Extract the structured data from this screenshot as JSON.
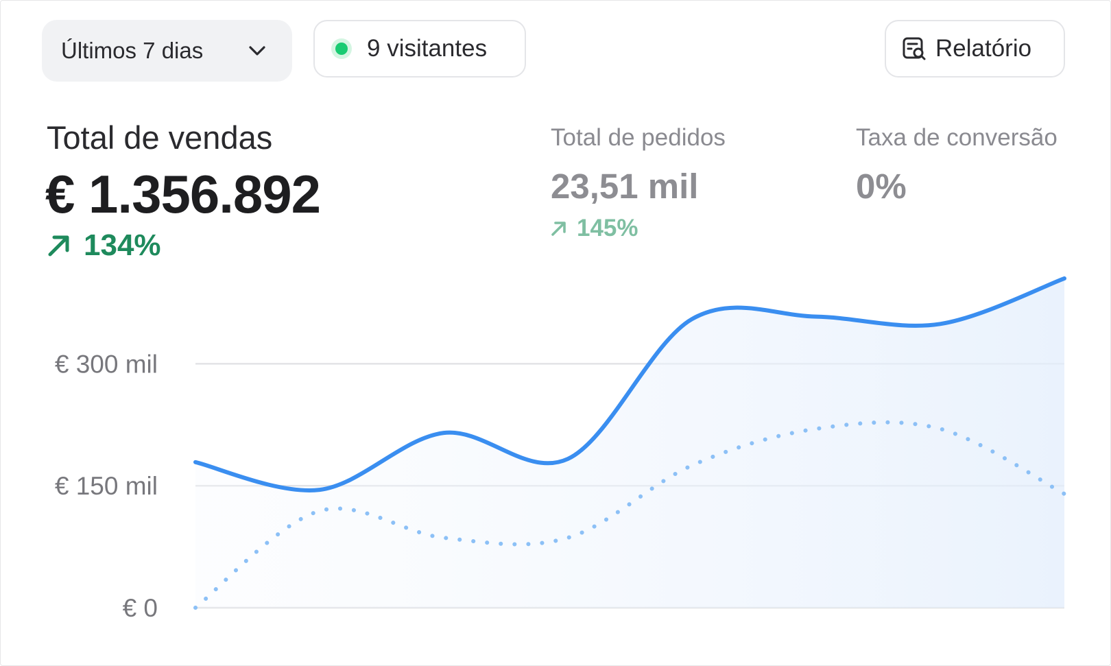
{
  "controls": {
    "period_label": "Últimos 7 dias",
    "visitors_label": "9 visitantes",
    "report_label": "Relatório"
  },
  "metrics": {
    "sales": {
      "label": "Total de vendas",
      "value": "€ 1.356.892",
      "change": "134%"
    },
    "orders": {
      "label": "Total de pedidos",
      "value": "23,51 mil",
      "change": "145%"
    },
    "conversion": {
      "label": "Taxa de conversão",
      "value": "0%"
    }
  },
  "colors": {
    "primary_line": "#3a8ef0",
    "comparison_line": "#8cc0f6",
    "positive": "#1e8a5c",
    "positive_muted": "#7fbfa2",
    "live_dot": "#19cb72"
  },
  "icons": {
    "period": "chevron-down-icon",
    "visitors": "live-dot-icon",
    "report": "report-search-icon",
    "change": "arrow-up-right-icon"
  },
  "chart_data": {
    "type": "area",
    "ytick_labels": [
      "€ 0",
      "€ 150 mil",
      "€ 300 mil"
    ],
    "ytick_values": [
      0,
      150000,
      300000
    ],
    "ylim": [
      0,
      410000
    ],
    "x": [
      0,
      1,
      2,
      3,
      4,
      5,
      6,
      7
    ],
    "grid": true,
    "series": [
      {
        "style": "solid",
        "fill": true,
        "values": [
          179000,
          145000,
          215000,
          183000,
          355000,
          358000,
          349000,
          405000
        ]
      },
      {
        "style": "dotted",
        "fill": false,
        "values": [
          0,
          119000,
          86000,
          86000,
          175000,
          220000,
          220000,
          140000
        ]
      }
    ]
  }
}
